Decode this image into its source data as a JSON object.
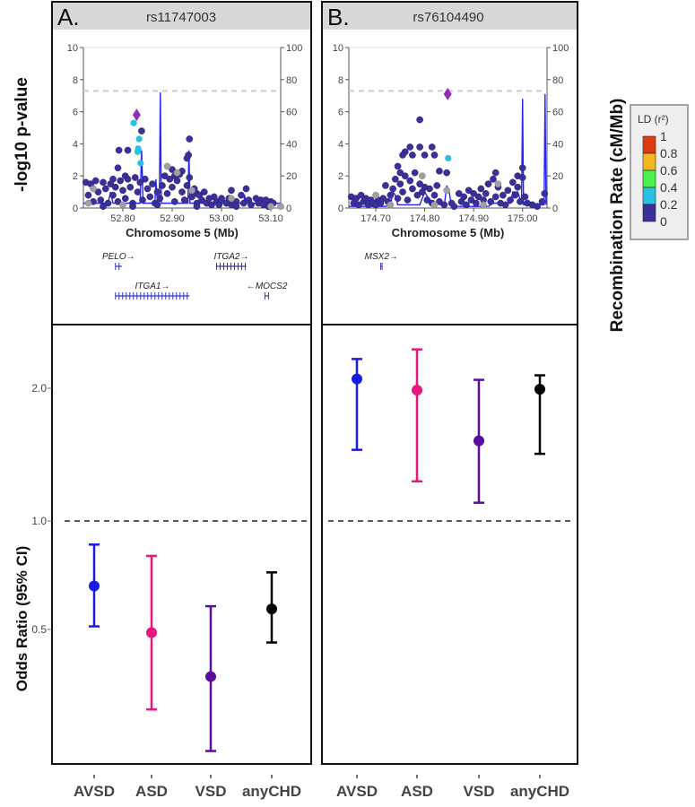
{
  "labels": {
    "y_left_top": "-log10 p-value",
    "y_right_top": "Recombination Rate (cM/Mb)",
    "y_bottom": "Odds Ratio (95% CI)"
  },
  "legend": {
    "title": "LD (r²)",
    "ticks": [
      "1",
      "0.8",
      "0.6",
      "0.4",
      "0.2",
      "0"
    ],
    "colors": [
      "#e03a10",
      "#f5b820",
      "#4ef04e",
      "#2bbfe0",
      "#3b2f9a"
    ]
  },
  "colors": {
    "dark": "#3b2f9a",
    "cyan": "#2bbfe0",
    "gray": "#a0a0a0",
    "lead": "#8e2fb8",
    "recomb": "#2424ff",
    "gene": "#3434b4"
  },
  "chart_data": [
    {
      "type": "scatter",
      "panel": "A.",
      "title": "rs11747003",
      "xlabel": "Chromosome 5 (Mb)",
      "xlim": [
        52.72,
        53.12
      ],
      "xticks": [
        "52.80",
        "52.90",
        "53.00",
        "53.10"
      ],
      "xtick_values": [
        52.8,
        52.9,
        53.0,
        53.1
      ],
      "ylim": [
        0,
        10
      ],
      "yticks": [
        "0",
        "2",
        "4",
        "6",
        "8",
        "10"
      ],
      "y2ticks": [
        "0",
        "20",
        "40",
        "60",
        "80",
        "100"
      ],
      "significance_line": 7.3,
      "lead": [
        52.828,
        5.8
      ],
      "cyan_points": [
        [
          52.822,
          5.3
        ],
        [
          52.833,
          4.3
        ],
        [
          52.831,
          3.7
        ],
        [
          52.83,
          3.5
        ],
        [
          52.836,
          2.8
        ]
      ],
      "gray_points": [
        [
          52.73,
          0.3
        ],
        [
          52.74,
          1.2
        ],
        [
          52.8,
          0.2
        ],
        [
          52.89,
          2.6
        ],
        [
          52.91,
          2.2
        ],
        [
          52.94,
          1.1
        ],
        [
          53.02,
          0.6
        ],
        [
          53.1,
          0.1
        ],
        [
          53.12,
          0.1
        ]
      ],
      "points": [
        [
          52.838,
          4.8
        ],
        [
          52.792,
          3.6
        ],
        [
          52.81,
          3.6
        ],
        [
          52.79,
          2.5
        ],
        [
          52.805,
          2.0
        ],
        [
          52.78,
          1.8
        ],
        [
          52.9,
          2.4
        ],
        [
          52.935,
          4.3
        ],
        [
          52.933,
          3.3
        ],
        [
          52.93,
          3.1
        ],
        [
          52.92,
          2.3
        ],
        [
          52.905,
          2.0
        ],
        [
          52.95,
          0.9
        ],
        [
          53.05,
          1.2
        ],
        [
          53.02,
          1.1
        ],
        [
          53.0,
          0.6
        ],
        [
          53.08,
          0.5
        ],
        [
          53.1,
          0.4
        ],
        [
          52.725,
          1.6
        ],
        [
          52.73,
          0.8
        ],
        [
          52.735,
          1.5
        ],
        [
          52.74,
          0.4
        ],
        [
          52.745,
          1.7
        ],
        [
          52.75,
          1.0
        ],
        [
          52.755,
          0.5
        ],
        [
          52.76,
          1.6
        ],
        [
          52.765,
          1.2
        ],
        [
          52.77,
          0.3
        ],
        [
          52.775,
          1.5
        ],
        [
          52.78,
          0.8
        ],
        [
          52.785,
          1.3
        ],
        [
          52.79,
          0.4
        ],
        [
          52.795,
          1.7
        ],
        [
          52.8,
          1.1
        ],
        [
          52.805,
          0.6
        ],
        [
          52.81,
          1.8
        ],
        [
          52.815,
          1.3
        ],
        [
          52.82,
          0.3
        ],
        [
          52.825,
          1.9
        ],
        [
          52.83,
          1.0
        ],
        [
          52.835,
          1.6
        ],
        [
          52.84,
          0.5
        ],
        [
          52.845,
          1.8
        ],
        [
          52.85,
          1.2
        ],
        [
          52.855,
          0.7
        ],
        [
          52.86,
          1.5
        ],
        [
          52.865,
          0.3
        ],
        [
          52.87,
          1.0
        ],
        [
          52.875,
          0.6
        ],
        [
          52.88,
          1.4
        ],
        [
          52.885,
          2.0
        ],
        [
          52.89,
          0.9
        ],
        [
          52.895,
          1.8
        ],
        [
          52.9,
          1.3
        ],
        [
          52.905,
          0.4
        ],
        [
          52.91,
          1.7
        ],
        [
          52.915,
          2.1
        ],
        [
          52.92,
          1.0
        ],
        [
          52.925,
          0.5
        ],
        [
          52.93,
          1.4
        ],
        [
          52.935,
          1.9
        ],
        [
          52.94,
          0.7
        ],
        [
          52.945,
          1.2
        ],
        [
          52.95,
          0.3
        ],
        [
          52.955,
          0.8
        ],
        [
          52.96,
          0.5
        ],
        [
          52.965,
          1.0
        ],
        [
          52.97,
          0.3
        ],
        [
          52.975,
          0.6
        ],
        [
          52.98,
          0.2
        ],
        [
          52.985,
          0.7
        ],
        [
          52.99,
          0.4
        ],
        [
          52.995,
          0.2
        ],
        [
          53.0,
          0.5
        ],
        [
          53.01,
          0.3
        ],
        [
          53.015,
          0.6
        ],
        [
          53.02,
          0.2
        ],
        [
          53.03,
          0.4
        ],
        [
          53.04,
          0.8
        ],
        [
          53.045,
          0.3
        ],
        [
          53.055,
          0.5
        ],
        [
          53.06,
          0.2
        ],
        [
          53.07,
          0.6
        ],
        [
          53.075,
          0.3
        ],
        [
          53.085,
          0.2
        ],
        [
          53.09,
          0.5
        ],
        [
          53.095,
          0.1
        ],
        [
          53.105,
          0.3
        ],
        [
          52.76,
          0.1
        ],
        [
          52.82,
          0.1
        ],
        [
          52.87,
          0.2
        ],
        [
          52.95,
          0.1
        ],
        [
          53.03,
          0.1
        ]
      ],
      "recombination": [
        [
          52.72,
          3
        ],
        [
          52.77,
          3
        ],
        [
          52.775,
          10
        ],
        [
          52.78,
          3
        ],
        [
          52.835,
          3
        ],
        [
          52.838,
          36
        ],
        [
          52.841,
          3
        ],
        [
          52.865,
          3
        ],
        [
          52.867,
          18
        ],
        [
          52.87,
          3
        ],
        [
          52.874,
          3
        ],
        [
          52.876,
          72
        ],
        [
          52.878,
          3
        ],
        [
          52.932,
          3
        ],
        [
          52.934,
          36
        ],
        [
          52.936,
          3
        ],
        [
          53.045,
          3
        ],
        [
          53.047,
          8
        ],
        [
          53.049,
          3
        ],
        [
          53.12,
          3
        ]
      ],
      "genes": [
        {
          "name": "PELO→",
          "start": 52.785,
          "end": 52.798,
          "row": 0
        },
        {
          "name": "ITGA2→",
          "start": 52.99,
          "end": 53.05,
          "row": 0
        },
        {
          "name": "ITGA1→",
          "start": 52.785,
          "end": 52.935,
          "row": 1
        },
        {
          "name": "←MOCS2",
          "start": 53.088,
          "end": 53.096,
          "row": 1
        }
      ]
    },
    {
      "type": "scatter",
      "panel": "B.",
      "title": "rs76104490",
      "xlabel": "Chromosome 5 (Mb)",
      "xlim": [
        174.645,
        175.05
      ],
      "xticks": [
        "174.70",
        "174.80",
        "174.90",
        "175.00"
      ],
      "xtick_values": [
        174.7,
        174.8,
        174.9,
        175.0
      ],
      "ylim": [
        0,
        10
      ],
      "yticks": [
        "0",
        "2",
        "4",
        "6",
        "8",
        "10"
      ],
      "y2ticks": [
        "0",
        "20",
        "40",
        "60",
        "80",
        "100"
      ],
      "significance_line": 7.3,
      "lead": [
        174.847,
        7.1
      ],
      "cyan_points": [
        [
          174.848,
          3.1
        ]
      ],
      "gray_points": [
        [
          174.7,
          0.8
        ],
        [
          174.73,
          0.2
        ],
        [
          174.795,
          2.0
        ],
        [
          174.845,
          1.1
        ],
        [
          174.82,
          0.2
        ],
        [
          174.92,
          0.2
        ],
        [
          174.95,
          1.5
        ]
      ],
      "points": [
        [
          174.79,
          5.5
        ],
        [
          174.77,
          3.8
        ],
        [
          174.79,
          3.8
        ],
        [
          174.815,
          3.8
        ],
        [
          174.76,
          3.5
        ],
        [
          174.755,
          3.3
        ],
        [
          174.775,
          3.3
        ],
        [
          174.8,
          3.3
        ],
        [
          174.82,
          3.3
        ],
        [
          174.83,
          2.3
        ],
        [
          174.845,
          2.2
        ],
        [
          174.745,
          2.6
        ],
        [
          174.75,
          2.2
        ],
        [
          175.0,
          2.5
        ],
        [
          174.945,
          2.2
        ],
        [
          174.99,
          2.0
        ],
        [
          174.65,
          0.7
        ],
        [
          174.655,
          0.3
        ],
        [
          174.66,
          0.6
        ],
        [
          174.665,
          0.2
        ],
        [
          174.67,
          0.8
        ],
        [
          174.675,
          0.4
        ],
        [
          174.68,
          0.6
        ],
        [
          174.685,
          0.2
        ],
        [
          174.69,
          0.5
        ],
        [
          174.695,
          0.3
        ],
        [
          174.7,
          0.2
        ],
        [
          174.705,
          0.5
        ],
        [
          174.71,
          0.3
        ],
        [
          174.715,
          0.6
        ],
        [
          174.72,
          1.4
        ],
        [
          174.725,
          0.4
        ],
        [
          174.73,
          0.8
        ],
        [
          174.735,
          1.2
        ],
        [
          174.74,
          1.8
        ],
        [
          174.745,
          0.6
        ],
        [
          174.75,
          1.5
        ],
        [
          174.755,
          1.0
        ],
        [
          174.76,
          2.0
        ],
        [
          174.765,
          0.5
        ],
        [
          174.77,
          1.7
        ],
        [
          174.775,
          1.2
        ],
        [
          174.78,
          2.2
        ],
        [
          174.785,
          0.8
        ],
        [
          174.79,
          1.5
        ],
        [
          174.795,
          1.0
        ],
        [
          174.8,
          1.3
        ],
        [
          174.805,
          0.5
        ],
        [
          174.81,
          1.2
        ],
        [
          174.815,
          0.3
        ],
        [
          174.82,
          0.8
        ],
        [
          174.825,
          1.4
        ],
        [
          174.83,
          0.4
        ],
        [
          174.84,
          0.2
        ],
        [
          174.855,
          0.3
        ],
        [
          174.86,
          0.1
        ],
        [
          174.87,
          0.9
        ],
        [
          174.875,
          0.4
        ],
        [
          174.88,
          0.7
        ],
        [
          174.885,
          0.2
        ],
        [
          174.89,
          1.1
        ],
        [
          174.895,
          0.5
        ],
        [
          174.9,
          0.9
        ],
        [
          174.905,
          0.3
        ],
        [
          174.91,
          0.7
        ],
        [
          174.915,
          1.2
        ],
        [
          174.92,
          0.5
        ],
        [
          174.925,
          0.9
        ],
        [
          174.93,
          1.5
        ],
        [
          174.935,
          0.4
        ],
        [
          174.94,
          1.8
        ],
        [
          174.945,
          0.7
        ],
        [
          174.95,
          1.3
        ],
        [
          174.955,
          0.3
        ],
        [
          174.96,
          0.8
        ],
        [
          174.965,
          0.2
        ],
        [
          174.97,
          1.1
        ],
        [
          174.975,
          0.5
        ],
        [
          174.98,
          1.6
        ],
        [
          174.985,
          0.8
        ],
        [
          174.99,
          1.3
        ],
        [
          174.995,
          0.4
        ],
        [
          175.0,
          1.9
        ],
        [
          175.005,
          0.7
        ],
        [
          175.01,
          0.3
        ],
        [
          175.02,
          0.2
        ],
        [
          175.03,
          0.1
        ],
        [
          175.04,
          0.4
        ],
        [
          175.045,
          0.9
        ]
      ],
      "recombination": [
        [
          174.645,
          1
        ],
        [
          174.72,
          1
        ],
        [
          174.73,
          2
        ],
        [
          174.735,
          10
        ],
        [
          174.74,
          8
        ],
        [
          174.745,
          2
        ],
        [
          174.79,
          2
        ],
        [
          174.8,
          10
        ],
        [
          174.81,
          5
        ],
        [
          174.84,
          1
        ],
        [
          174.845,
          14
        ],
        [
          174.85,
          10
        ],
        [
          174.855,
          1
        ],
        [
          174.93,
          1
        ],
        [
          174.94,
          3
        ],
        [
          174.975,
          3
        ],
        [
          174.98,
          10
        ],
        [
          174.99,
          10
        ],
        [
          174.998,
          3
        ],
        [
          175.0,
          68
        ],
        [
          175.002,
          2
        ],
        [
          175.044,
          2
        ],
        [
          175.046,
          71
        ],
        [
          175.048,
          2
        ]
      ],
      "genes": [
        {
          "name": "MSX2→",
          "start": 174.71,
          "end": 174.713,
          "row": 0
        }
      ]
    },
    {
      "type": "errorbar",
      "panel": "A.",
      "categories": [
        "AVSD",
        "ASD",
        "VSD",
        "anyCHD"
      ],
      "colors": [
        "#1a1ae6",
        "#e8167f",
        "#5a0c9a",
        "#000000"
      ],
      "values": [
        0.66,
        0.49,
        0.37,
        0.57
      ],
      "lower": [
        0.51,
        0.3,
        0.23,
        0.46
      ],
      "upper": [
        0.86,
        0.8,
        0.58,
        0.72
      ],
      "yscale": "log",
      "yticks": [
        "0.5",
        "1.0",
        "2.0"
      ],
      "ytick_values": [
        0.5,
        1.0,
        2.0
      ],
      "reference_line": 1.0
    },
    {
      "type": "errorbar",
      "panel": "B.",
      "categories": [
        "AVSD",
        "ASD",
        "VSD",
        "anyCHD"
      ],
      "colors": [
        "#1a1ae6",
        "#e8167f",
        "#5a0c9a",
        "#000000"
      ],
      "values": [
        2.1,
        1.98,
        1.52,
        1.99
      ],
      "lower": [
        1.45,
        1.23,
        1.1,
        1.42
      ],
      "upper": [
        2.33,
        2.45,
        2.09,
        2.14
      ],
      "yscale": "log",
      "reference_line": 1.0
    }
  ]
}
